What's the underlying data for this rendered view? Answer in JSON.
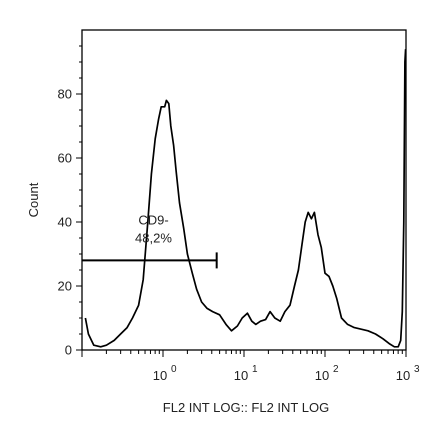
{
  "chart_data": {
    "type": "line",
    "title": "",
    "xlabel": "FL2 INT LOG:: FL2 INT LOG",
    "ylabel": "Count",
    "x_scale": "log",
    "xlim": [
      0.1,
      1000
    ],
    "ylim": [
      0,
      100
    ],
    "x_ticks": [
      {
        "value": 1,
        "base": "10",
        "exp": "0"
      },
      {
        "value": 10,
        "base": "10",
        "exp": "1"
      },
      {
        "value": 100,
        "base": "10",
        "exp": "2"
      },
      {
        "value": 1000,
        "base": "10",
        "exp": "3"
      }
    ],
    "y_ticks": [
      0,
      20,
      40,
      60,
      80
    ],
    "grid": false,
    "line_color": "#000000",
    "series": [
      {
        "x": [
          0.11,
          0.12,
          0.14,
          0.17,
          0.2,
          0.25,
          0.3,
          0.36,
          0.42,
          0.5,
          0.57,
          0.65,
          0.72,
          0.8,
          0.88,
          0.95,
          1.05,
          1.1,
          1.18,
          1.25,
          1.35,
          1.45,
          1.6,
          1.8,
          2.0,
          2.3,
          2.6,
          3.0,
          3.5,
          4.1,
          5.0,
          6.0,
          7.0,
          8.3,
          9.5,
          11.0,
          12.5,
          14.0,
          16.0,
          18.5,
          21.0,
          24.0,
          28.0,
          32.0,
          37.0,
          42.0,
          47.0,
          52.0,
          57.0,
          62.0,
          68.0,
          74.0,
          82.0,
          90.0,
          100.0,
          112.0,
          125.0,
          140.0,
          160.0,
          190.0,
          230.0,
          280.0,
          340.0,
          420.0,
          520.0,
          620.0,
          720.0,
          800.0,
          860.0,
          900.0,
          940.0,
          970.0,
          990.0
        ],
        "y": [
          10,
          5,
          1.5,
          1,
          1.5,
          3,
          5,
          7,
          10,
          14,
          22,
          40,
          55,
          66,
          72,
          76,
          76,
          78,
          77,
          70,
          64,
          56,
          46,
          38,
          30,
          24,
          19,
          15,
          13,
          12,
          11,
          8,
          6,
          7.5,
          10,
          11.5,
          9,
          8,
          9,
          9.5,
          12,
          10,
          9,
          12,
          14,
          20,
          25,
          33,
          40,
          43,
          41,
          43,
          36,
          32,
          24,
          23,
          20,
          16,
          10,
          8,
          7,
          6.5,
          6,
          5,
          3.5,
          2,
          1,
          1,
          3,
          12,
          40,
          90,
          94
        ]
      }
    ],
    "gate": {
      "label": [
        "CD9-",
        "48,2%"
      ],
      "x_start": 0.1,
      "x_end": 4.6,
      "y": 28
    }
  }
}
